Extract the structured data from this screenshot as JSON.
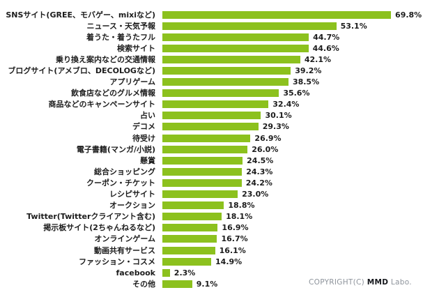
{
  "chart_data": {
    "type": "bar",
    "orientation": "horizontal",
    "title": "",
    "xlabel": "",
    "ylabel": "",
    "grid": false,
    "legend_position": "none",
    "xlim": [
      0,
      77
    ],
    "value_suffix": "%",
    "bar_color": "#8cc11e",
    "categories": [
      "SNSサイト(GREE、モバゲー、mixiなど)",
      "ニュース・天気予報",
      "着うた・着うたフル",
      "検索サイト",
      "乗り換え案内などの交通情報",
      "ブログサイト(アメブロ、DECOLOGなど)",
      "アプリゲーム",
      "飲食店などのグルメ情報",
      "商品などのキャンペーンサイト",
      "占い",
      "デコメ",
      "待受け",
      "電子書籍(マンガ/小説)",
      "懸賞",
      "総合ショッピング",
      "クーポン・チケット",
      "レシピサイト",
      "オークション",
      "Twitter(Twitterクライアント含む)",
      "掲示板サイト(2ちゃんねるなど)",
      "オンラインゲーム",
      "動画共有サービス",
      "ファッション・コスメ",
      "facebook",
      "その他"
    ],
    "values": [
      69.8,
      53.1,
      44.7,
      44.6,
      42.1,
      39.2,
      38.5,
      35.6,
      32.4,
      30.1,
      29.3,
      26.9,
      26.0,
      24.5,
      24.3,
      24.2,
      23.0,
      18.8,
      18.1,
      16.9,
      16.7,
      16.1,
      14.9,
      2.3,
      9.1
    ]
  },
  "footer": {
    "copyright_prefix": "COPYRIGHT(C) ",
    "copyright_brand": "MMD",
    "copyright_suffix": " Labo."
  }
}
